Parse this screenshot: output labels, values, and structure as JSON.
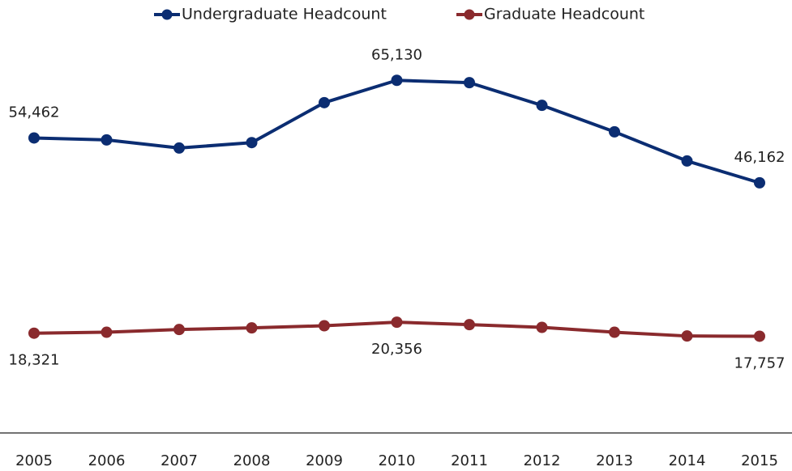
{
  "chart_data": {
    "type": "line",
    "categories": [
      "2005",
      "2006",
      "2007",
      "2008",
      "2009",
      "2010",
      "2011",
      "2012",
      "2013",
      "2014",
      "2015"
    ],
    "series": [
      {
        "name": "Undergraduate Headcount",
        "color": "#0b2d72",
        "values": [
          54462,
          54100,
          52600,
          53600,
          61000,
          65130,
          64700,
          60500,
          55600,
          50200,
          46162
        ],
        "value_labels": [
          "54,462",
          null,
          null,
          null,
          null,
          "65,130",
          null,
          null,
          null,
          null,
          "46,162"
        ]
      },
      {
        "name": "Graduate Headcount",
        "color": "#8a2a2d",
        "values": [
          18321,
          18500,
          19000,
          19300,
          19700,
          20356,
          19900,
          19400,
          18500,
          17800,
          17757
        ],
        "value_labels": [
          "18,321",
          null,
          null,
          null,
          null,
          "20,356",
          null,
          null,
          null,
          null,
          "17,757"
        ]
      }
    ],
    "ylim": [
      0,
      80000
    ],
    "legend": "top"
  }
}
